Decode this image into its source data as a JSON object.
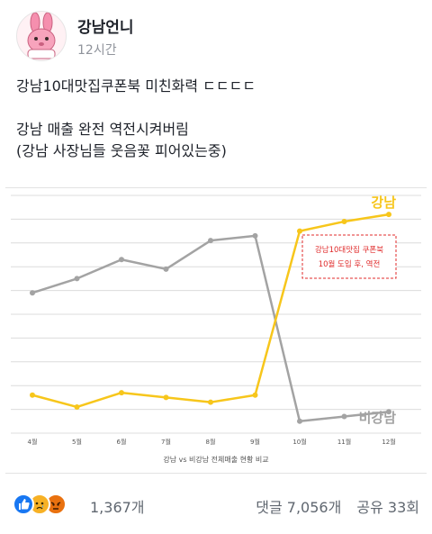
{
  "post": {
    "author": "강남언니",
    "time": "12시간",
    "text": "강남10대맛집쿠폰북 미친화력 ㄷㄷㄷㄷ\n\n강남 매출 완전 역전시켜버림\n(강남 사장님들 웃음꽃 피어있는중)"
  },
  "chart_data": {
    "type": "line",
    "title": "강남 vs 비강남 전체매출 현황 비교",
    "categories": [
      "4월",
      "5월",
      "6월",
      "7월",
      "8월",
      "9월",
      "10월",
      "11월",
      "12월"
    ],
    "ylim": [
      0,
      100
    ],
    "grid": true,
    "series": [
      {
        "name": "비강남",
        "color": "#a3a3a3",
        "values": [
          59,
          65,
          73,
          69,
          81,
          83,
          5,
          7,
          9
        ]
      },
      {
        "name": "강남",
        "color": "#f7c61b",
        "values": [
          16,
          11,
          17,
          15,
          13,
          16,
          85,
          89,
          92
        ]
      }
    ],
    "annotation": {
      "lines": [
        "강남10대맛집 쿠폰북",
        "10월 도입 후, 역전"
      ],
      "color": "#e02b2b"
    }
  },
  "footer": {
    "reaction_count": "1,367개",
    "comments": "댓글 7,056개",
    "shares": "공유 33회",
    "reactions": [
      "like-icon",
      "sad-icon",
      "angry-icon"
    ],
    "colors": {
      "like": "#1877f2",
      "sad": "#f7b125",
      "angry": "#e9710f"
    }
  }
}
